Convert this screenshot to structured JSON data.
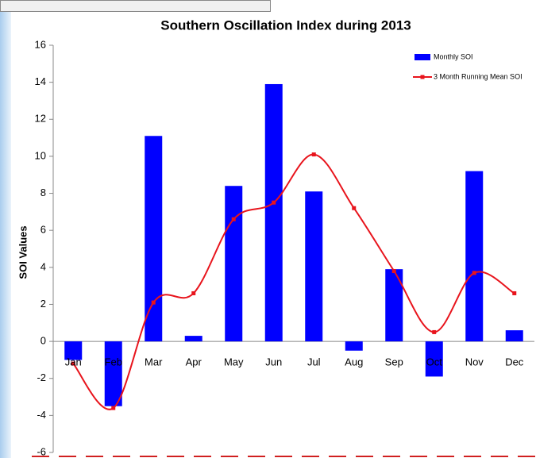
{
  "chart_data": {
    "type": "bar",
    "title": "Southern Oscillation Index during 2013",
    "y_label": "SOI Values",
    "categories": [
      "Jan",
      "Feb",
      "Mar",
      "Apr",
      "May",
      "Jun",
      "Jul",
      "Aug",
      "Sep",
      "Oct",
      "Nov",
      "Dec"
    ],
    "series": [
      {
        "name": "Monthly SOI",
        "type": "bar",
        "color": "#0000ff",
        "values": [
          -1.0,
          -3.5,
          11.1,
          0.3,
          8.4,
          13.9,
          8.1,
          -0.5,
          3.9,
          -1.9,
          9.2,
          0.6
        ]
      },
      {
        "name": "3 Month Running Mean SOI",
        "type": "line",
        "color": "#e8141c",
        "values": [
          -1.2,
          -3.6,
          2.1,
          2.6,
          6.6,
          7.5,
          10.1,
          7.2,
          3.8,
          0.5,
          3.7,
          2.6
        ]
      }
    ],
    "ylim": [
      -6,
      16
    ],
    "yticks": [
      -6,
      -4,
      -2,
      0,
      2,
      4,
      6,
      8,
      10,
      12,
      14,
      16
    ],
    "grid": false,
    "legend": "top-right"
  }
}
